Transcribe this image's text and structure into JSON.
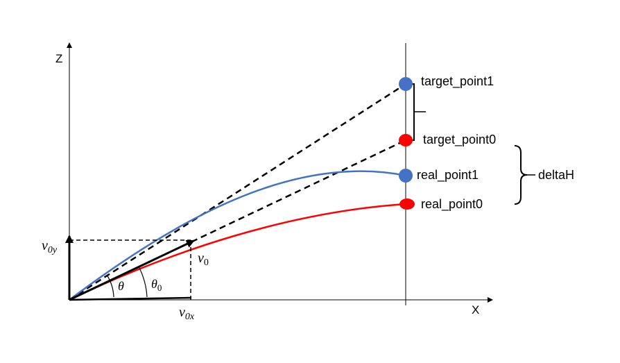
{
  "axes": {
    "z_label": "Z",
    "x_label": "X"
  },
  "points": {
    "target_point1": "target_point1",
    "target_point0": "target_point0",
    "real_point1": "real_point1",
    "real_point0": "real_point0"
  },
  "bracket_label": "deltaH",
  "velocity": {
    "v0_base": "v",
    "v0_sub": "0",
    "v0y_base": "v",
    "v0y_sub": "0y",
    "v0x_base": "v",
    "v0x_sub": "0x"
  },
  "angles": {
    "theta": "θ",
    "theta0_base": "θ",
    "theta0_sub": "0"
  },
  "colors": {
    "blue": "#4472C4",
    "red": "#FF0000",
    "black": "#000000"
  }
}
